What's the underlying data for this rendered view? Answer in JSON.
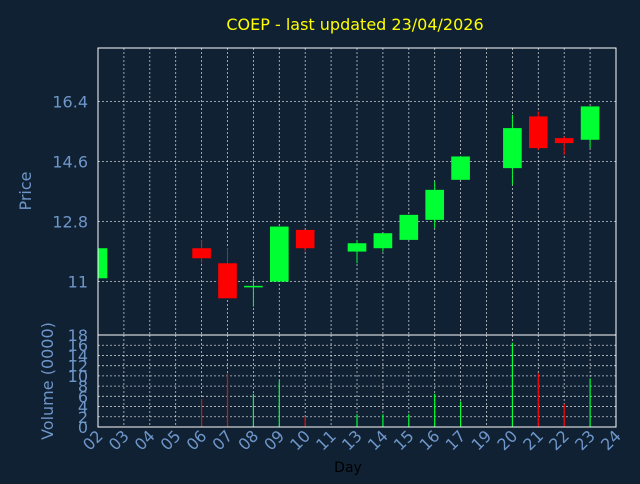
{
  "chart_data": {
    "type": "candlestick",
    "title": "COEP - last updated 23/04/2026",
    "xlabel": "Day",
    "categories": [
      "02",
      "03",
      "04",
      "05",
      "06",
      "07",
      "08",
      "09",
      "10",
      "11",
      "13",
      "14",
      "15",
      "16",
      "17",
      "19",
      "20",
      "21",
      "22",
      "23",
      "24"
    ],
    "price_panel": {
      "ylabel": "Price",
      "yticks": [
        "16.4",
        "14.6",
        "12.8",
        "11"
      ],
      "ylim": [
        9.4,
        18.0
      ],
      "grid": true,
      "candles": [
        {
          "day": "02",
          "open": 11.1,
          "close": 12.0,
          "high": 12.0,
          "low": 11.1
        },
        {
          "day": "06",
          "open": 12.0,
          "close": 11.7,
          "high": 12.25,
          "low": 11.55
        },
        {
          "day": "07",
          "open": 11.55,
          "close": 10.5,
          "high": 12.0,
          "low": 10.5
        },
        {
          "day": "08",
          "open": 10.85,
          "close": 10.85,
          "high": 11.1,
          "low": 10.25
        },
        {
          "day": "09",
          "open": 11.0,
          "close": 12.65,
          "high": 12.65,
          "low": 11.0
        },
        {
          "day": "10",
          "open": 12.55,
          "close": 12.0,
          "high": 12.55,
          "low": 11.9
        },
        {
          "day": "13",
          "open": 11.9,
          "close": 12.15,
          "high": 12.25,
          "low": 11.55
        },
        {
          "day": "14",
          "open": 12.0,
          "close": 12.45,
          "high": 12.45,
          "low": 11.9
        },
        {
          "day": "15",
          "open": 12.25,
          "close": 13.0,
          "high": 13.0,
          "low": 12.25
        },
        {
          "day": "16",
          "open": 12.85,
          "close": 13.75,
          "high": 14.0,
          "low": 12.6
        },
        {
          "day": "17",
          "open": 14.05,
          "close": 14.75,
          "high": 14.75,
          "low": 14.05
        },
        {
          "day": "20",
          "open": 14.4,
          "close": 15.6,
          "high": 16.0,
          "low": 13.9
        },
        {
          "day": "21",
          "open": 15.95,
          "close": 15.0,
          "high": 16.1,
          "low": 14.95
        },
        {
          "day": "22",
          "open": 15.3,
          "close": 15.15,
          "high": 15.35,
          "low": 14.8
        },
        {
          "day": "23",
          "open": 15.25,
          "close": 16.25,
          "high": 16.25,
          "low": 15.0
        }
      ]
    },
    "volume_panel": {
      "ylabel": "Volume (0000)",
      "yticks": [
        "18",
        "16",
        "14",
        "12",
        "10",
        "8",
        "6",
        "4",
        "2",
        "0"
      ],
      "ylim": [
        0,
        18
      ],
      "grid": true,
      "bars": [
        {
          "day": "02",
          "value": 0,
          "color": "green"
        },
        {
          "day": "06",
          "value": 5.5,
          "color": "red"
        },
        {
          "day": "07",
          "value": 10.5,
          "color": "red"
        },
        {
          "day": "08",
          "value": 6.5,
          "color": "green"
        },
        {
          "day": "09",
          "value": 9.0,
          "color": "green"
        },
        {
          "day": "10",
          "value": 2.0,
          "color": "red"
        },
        {
          "day": "13",
          "value": 2.5,
          "color": "green"
        },
        {
          "day": "14",
          "value": 2.5,
          "color": "green"
        },
        {
          "day": "15",
          "value": 2.5,
          "color": "green"
        },
        {
          "day": "16",
          "value": 6.5,
          "color": "green"
        },
        {
          "day": "17",
          "value": 5.0,
          "color": "green"
        },
        {
          "day": "20",
          "value": 16.5,
          "color": "green"
        },
        {
          "day": "21",
          "value": 10.5,
          "color": "red"
        },
        {
          "day": "22",
          "value": 4.5,
          "color": "red"
        },
        {
          "day": "23",
          "value": 9.5,
          "color": "green"
        }
      ]
    },
    "colors": {
      "background": "#0f2133",
      "up": "#00ff33",
      "down": "#ff0000",
      "grid": "#ffffff",
      "axis_text": "#6f96c9",
      "title": "#ffff00",
      "xlabel": "#000000",
      "frame": "#ffffff"
    }
  }
}
